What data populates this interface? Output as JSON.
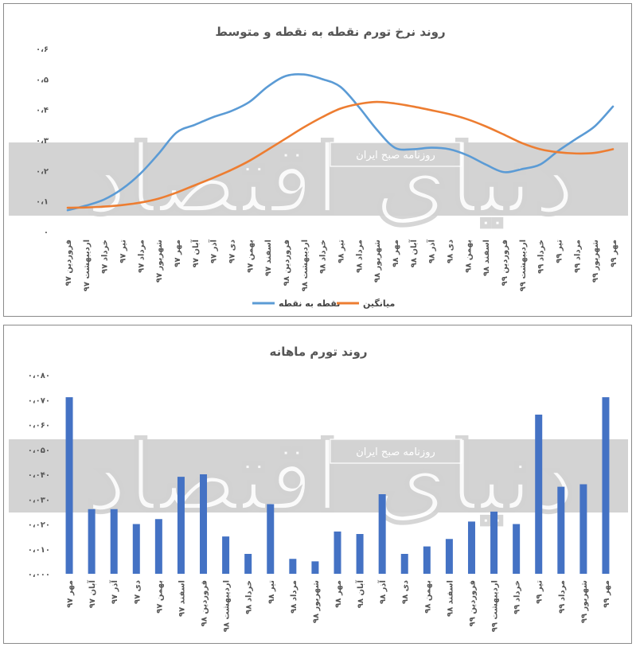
{
  "chart_data": [
    {
      "type": "line",
      "title": "روند نرخ تورم نقطه به نقطه و متوسط",
      "ylim": [
        0,
        0.6
      ],
      "y_ticks": [
        "۰",
        "۰،۱",
        "۰،۲",
        "۰،۳",
        "۰،۴",
        "۰،۵",
        "۰،۶"
      ],
      "categories": [
        "فروردین ۹۷",
        "اردیبهشت ۹۷",
        "خرداد ۹۷",
        "تیر ۹۷",
        "مرداد ۹۷",
        "شهریور ۹۷",
        "مهر ۹۷",
        "آبان ۹۷",
        "آذر ۹۷",
        "دی ۹۷",
        "بهمن ۹۷",
        "اسفند ۹۷",
        "فروردین ۹۸",
        "اردیبهشت ۹۸",
        "خرداد ۹۸",
        "تیر ۹۸",
        "مرداد ۹۸",
        "شهریور ۹۸",
        "مهر ۹۸",
        "آبان ۹۸",
        "آذر ۹۸",
        "دی ۹۸",
        "بهمن ۹۸",
        "اسفند ۹۸",
        "فروردین ۹۹",
        "اردیبهشت ۹۹",
        "خرداد ۹۹",
        "تیر ۹۹",
        "مرداد ۹۹",
        "شهریور ۹۹",
        "مهر ۹۹"
      ],
      "series": [
        {
          "name": "نقطه به نقطه",
          "color": "#5b9bd5",
          "values": [
            0.07,
            0.085,
            0.105,
            0.14,
            0.19,
            0.255,
            0.325,
            0.35,
            0.375,
            0.395,
            0.425,
            0.475,
            0.51,
            0.515,
            0.5,
            0.475,
            0.41,
            0.335,
            0.275,
            0.27,
            0.275,
            0.27,
            0.25,
            0.22,
            0.195,
            0.205,
            0.22,
            0.265,
            0.305,
            0.345,
            0.41
          ]
        },
        {
          "name": "میانگین",
          "color": "#ed7d31",
          "values": [
            0.078,
            0.079,
            0.082,
            0.087,
            0.095,
            0.108,
            0.128,
            0.152,
            0.176,
            0.202,
            0.232,
            0.268,
            0.305,
            0.342,
            0.375,
            0.403,
            0.418,
            0.425,
            0.42,
            0.41,
            0.398,
            0.385,
            0.368,
            0.345,
            0.318,
            0.29,
            0.27,
            0.26,
            0.256,
            0.258,
            0.27
          ]
        }
      ],
      "legend_position": "bottom"
    },
    {
      "type": "bar",
      "title": "روند تورم ماهانه",
      "ylim": [
        0,
        0.08
      ],
      "y_ticks": [
        "۰،۰۰۰",
        "۰،۰۱۰",
        "۰،۰۲۰",
        "۰،۰۳۰",
        "۰،۰۴۰",
        "۰،۰۵۰",
        "۰،۰۶۰",
        "۰،۰۷۰",
        "۰،۰۸۰"
      ],
      "categories": [
        "مهر ۹۷",
        "آبان ۹۷",
        "آذر ۹۷",
        "دی ۹۷",
        "بهمن ۹۷",
        "اسفند ۹۷",
        "فروردین ۹۸",
        "اردیبهشت ۹۸",
        "خرداد ۹۸",
        "تیر ۹۸",
        "مرداد ۹۸",
        "شهریور ۹۸",
        "مهر ۹۸",
        "آبان ۹۸",
        "آذر ۹۸",
        "دی ۹۸",
        "بهمن ۹۸",
        "اسفند ۹۸",
        "فروردین ۹۹",
        "اردیبهشت ۹۹",
        "خرداد ۹۹",
        "تیر ۹۹",
        "مرداد ۹۹",
        "شهریور ۹۹",
        "مهر ۹۹"
      ],
      "values": [
        0.071,
        0.026,
        0.026,
        0.02,
        0.022,
        0.039,
        0.04,
        0.015,
        0.008,
        0.028,
        0.006,
        0.005,
        0.017,
        0.016,
        0.032,
        0.008,
        0.011,
        0.014,
        0.021,
        0.025,
        0.02,
        0.064,
        0.035,
        0.036,
        0.071
      ],
      "color": "#4472c4"
    }
  ],
  "watermark": {
    "logo_text": "دنیای اقتصاد",
    "source_text": "روزنامه صبح ایران"
  }
}
